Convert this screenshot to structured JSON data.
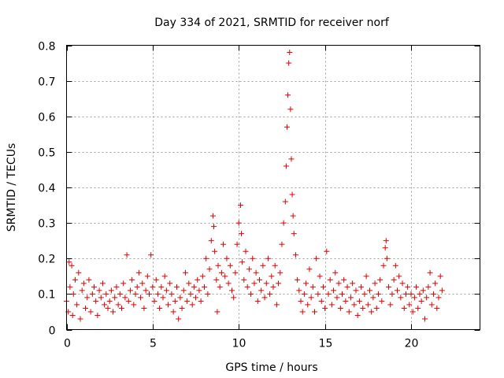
{
  "chart_data": {
    "type": "scatter",
    "title": "Day 334 of 2021, SRMTID for receiver norf",
    "xlabel": "GPS time / hours",
    "ylabel": "SRMTID / TECUs",
    "xlim": [
      0,
      24
    ],
    "ylim": [
      0,
      0.8
    ],
    "xticks": [
      0,
      5,
      10,
      15,
      20
    ],
    "xtick_labels": [
      "0",
      "5",
      "10",
      "15",
      "20"
    ],
    "yticks": [
      0,
      0.1,
      0.2,
      0.3,
      0.4,
      0.5,
      0.6,
      0.7,
      0.8
    ],
    "ytick_labels": [
      "0",
      "0.1",
      "0.2",
      "0.3",
      "0.4",
      "0.5",
      "0.6",
      "0.7",
      "0.8"
    ],
    "grid": true,
    "marker": "+",
    "color": "#e00000",
    "series": [
      {
        "name": "SRMTID",
        "points": [
          [
            0.0,
            0.08
          ],
          [
            0.1,
            0.05
          ],
          [
            0.15,
            0.19
          ],
          [
            0.2,
            0.12
          ],
          [
            0.3,
            0.18
          ],
          [
            0.35,
            0.04
          ],
          [
            0.4,
            0.1
          ],
          [
            0.5,
            0.14
          ],
          [
            0.6,
            0.07
          ],
          [
            0.7,
            0.16
          ],
          [
            0.8,
            0.03
          ],
          [
            0.9,
            0.11
          ],
          [
            1.0,
            0.13
          ],
          [
            1.1,
            0.06
          ],
          [
            1.2,
            0.09
          ],
          [
            1.3,
            0.14
          ],
          [
            1.4,
            0.05
          ],
          [
            1.5,
            0.1
          ],
          [
            1.6,
            0.12
          ],
          [
            1.7,
            0.08
          ],
          [
            1.8,
            0.04
          ],
          [
            1.9,
            0.11
          ],
          [
            2.0,
            0.09
          ],
          [
            2.1,
            0.13
          ],
          [
            2.2,
            0.07
          ],
          [
            2.3,
            0.1
          ],
          [
            2.4,
            0.06
          ],
          [
            2.5,
            0.08
          ],
          [
            2.6,
            0.11
          ],
          [
            2.7,
            0.05
          ],
          [
            2.8,
            0.09
          ],
          [
            2.9,
            0.12
          ],
          [
            3.0,
            0.07
          ],
          [
            3.1,
            0.1
          ],
          [
            3.2,
            0.06
          ],
          [
            3.3,
            0.13
          ],
          [
            3.4,
            0.09
          ],
          [
            3.5,
            0.21
          ],
          [
            3.6,
            0.08
          ],
          [
            3.7,
            0.11
          ],
          [
            3.8,
            0.14
          ],
          [
            3.9,
            0.07
          ],
          [
            4.0,
            0.1
          ],
          [
            4.1,
            0.12
          ],
          [
            4.2,
            0.16
          ],
          [
            4.3,
            0.09
          ],
          [
            4.4,
            0.13
          ],
          [
            4.5,
            0.06
          ],
          [
            4.6,
            0.11
          ],
          [
            4.7,
            0.15
          ],
          [
            4.8,
            0.1
          ],
          [
            4.9,
            0.21
          ],
          [
            5.0,
            0.12
          ],
          [
            5.1,
            0.08
          ],
          [
            5.2,
            0.14
          ],
          [
            5.3,
            0.1
          ],
          [
            5.4,
            0.06
          ],
          [
            5.5,
            0.12
          ],
          [
            5.6,
            0.09
          ],
          [
            5.7,
            0.15
          ],
          [
            5.8,
            0.11
          ],
          [
            5.9,
            0.07
          ],
          [
            6.0,
            0.13
          ],
          [
            6.1,
            0.1
          ],
          [
            6.2,
            0.05
          ],
          [
            6.3,
            0.08
          ],
          [
            6.4,
            0.12
          ],
          [
            6.5,
            0.03
          ],
          [
            6.6,
            0.09
          ],
          [
            6.7,
            0.06
          ],
          [
            6.8,
            0.11
          ],
          [
            6.9,
            0.16
          ],
          [
            7.0,
            0.08
          ],
          [
            7.1,
            0.13
          ],
          [
            7.2,
            0.1
          ],
          [
            7.3,
            0.07
          ],
          [
            7.4,
            0.12
          ],
          [
            7.5,
            0.09
          ],
          [
            7.6,
            0.14
          ],
          [
            7.7,
            0.11
          ],
          [
            7.8,
            0.08
          ],
          [
            7.9,
            0.15
          ],
          [
            8.0,
            0.12
          ],
          [
            8.1,
            0.2
          ],
          [
            8.2,
            0.1
          ],
          [
            8.3,
            0.17
          ],
          [
            8.4,
            0.25
          ],
          [
            8.5,
            0.32
          ],
          [
            8.55,
            0.29
          ],
          [
            8.6,
            0.22
          ],
          [
            8.7,
            0.14
          ],
          [
            8.75,
            0.05
          ],
          [
            8.8,
            0.18
          ],
          [
            8.9,
            0.12
          ],
          [
            9.0,
            0.16
          ],
          [
            9.1,
            0.24
          ],
          [
            9.2,
            0.15
          ],
          [
            9.3,
            0.2
          ],
          [
            9.4,
            0.13
          ],
          [
            9.5,
            0.18
          ],
          [
            9.6,
            0.11
          ],
          [
            9.7,
            0.09
          ],
          [
            9.8,
            0.16
          ],
          [
            9.9,
            0.24
          ],
          [
            10.0,
            0.3
          ],
          [
            10.1,
            0.35
          ],
          [
            10.15,
            0.27
          ],
          [
            10.2,
            0.19
          ],
          [
            10.3,
            0.14
          ],
          [
            10.4,
            0.22
          ],
          [
            10.5,
            0.12
          ],
          [
            10.6,
            0.17
          ],
          [
            10.7,
            0.1
          ],
          [
            10.8,
            0.2
          ],
          [
            10.9,
            0.13
          ],
          [
            11.0,
            0.16
          ],
          [
            11.1,
            0.08
          ],
          [
            11.2,
            0.14
          ],
          [
            11.3,
            0.11
          ],
          [
            11.4,
            0.18
          ],
          [
            11.5,
            0.09
          ],
          [
            11.6,
            0.13
          ],
          [
            11.7,
            0.2
          ],
          [
            11.8,
            0.1
          ],
          [
            11.9,
            0.15
          ],
          [
            12.0,
            0.12
          ],
          [
            12.1,
            0.18
          ],
          [
            12.2,
            0.07
          ],
          [
            12.3,
            0.13
          ],
          [
            12.4,
            0.16
          ],
          [
            12.5,
            0.24
          ],
          [
            12.6,
            0.3
          ],
          [
            12.7,
            0.36
          ],
          [
            12.75,
            0.46
          ],
          [
            12.8,
            0.57
          ],
          [
            12.85,
            0.66
          ],
          [
            12.9,
            0.75
          ],
          [
            12.95,
            0.78
          ],
          [
            13.0,
            0.62
          ],
          [
            13.05,
            0.48
          ],
          [
            13.1,
            0.38
          ],
          [
            13.15,
            0.32
          ],
          [
            13.2,
            0.27
          ],
          [
            13.3,
            0.21
          ],
          [
            13.4,
            0.14
          ],
          [
            13.5,
            0.11
          ],
          [
            13.6,
            0.08
          ],
          [
            13.7,
            0.05
          ],
          [
            13.8,
            0.1
          ],
          [
            13.9,
            0.13
          ],
          [
            14.0,
            0.07
          ],
          [
            14.1,
            0.17
          ],
          [
            14.2,
            0.09
          ],
          [
            14.3,
            0.12
          ],
          [
            14.4,
            0.05
          ],
          [
            14.5,
            0.2
          ],
          [
            14.6,
            0.1
          ],
          [
            14.7,
            0.15
          ],
          [
            14.8,
            0.08
          ],
          [
            14.9,
            0.12
          ],
          [
            15.0,
            0.06
          ],
          [
            15.1,
            0.22
          ],
          [
            15.2,
            0.1
          ],
          [
            15.3,
            0.14
          ],
          [
            15.4,
            0.07
          ],
          [
            15.5,
            0.11
          ],
          [
            15.6,
            0.16
          ],
          [
            15.7,
            0.09
          ],
          [
            15.8,
            0.13
          ],
          [
            15.9,
            0.06
          ],
          [
            16.0,
            0.1
          ],
          [
            16.1,
            0.14
          ],
          [
            16.2,
            0.08
          ],
          [
            16.3,
            0.12
          ],
          [
            16.4,
            0.05
          ],
          [
            16.5,
            0.09
          ],
          [
            16.6,
            0.13
          ],
          [
            16.7,
            0.07
          ],
          [
            16.8,
            0.11
          ],
          [
            16.9,
            0.04
          ],
          [
            17.0,
            0.08
          ],
          [
            17.1,
            0.12
          ],
          [
            17.2,
            0.06
          ],
          [
            17.3,
            0.1
          ],
          [
            17.4,
            0.15
          ],
          [
            17.5,
            0.07
          ],
          [
            17.6,
            0.11
          ],
          [
            17.7,
            0.05
          ],
          [
            17.8,
            0.09
          ],
          [
            17.9,
            0.13
          ],
          [
            18.0,
            0.06
          ],
          [
            18.1,
            0.1
          ],
          [
            18.2,
            0.14
          ],
          [
            18.3,
            0.08
          ],
          [
            18.4,
            0.18
          ],
          [
            18.5,
            0.23
          ],
          [
            18.55,
            0.25
          ],
          [
            18.6,
            0.2
          ],
          [
            18.7,
            0.12
          ],
          [
            18.8,
            0.07
          ],
          [
            18.9,
            0.1
          ],
          [
            19.0,
            0.14
          ],
          [
            19.1,
            0.18
          ],
          [
            19.2,
            0.11
          ],
          [
            19.3,
            0.15
          ],
          [
            19.4,
            0.09
          ],
          [
            19.5,
            0.13
          ],
          [
            19.6,
            0.06
          ],
          [
            19.7,
            0.1
          ],
          [
            19.8,
            0.12
          ],
          [
            19.9,
            0.07
          ],
          [
            20.0,
            0.1
          ],
          [
            20.1,
            0.05
          ],
          [
            20.2,
            0.09
          ],
          [
            20.3,
            0.12
          ],
          [
            20.4,
            0.06
          ],
          [
            20.5,
            0.1
          ],
          [
            20.6,
            0.08
          ],
          [
            20.7,
            0.11
          ],
          [
            20.8,
            0.03
          ],
          [
            20.9,
            0.09
          ],
          [
            21.0,
            0.12
          ],
          [
            21.1,
            0.16
          ],
          [
            21.2,
            0.07
          ],
          [
            21.3,
            0.1
          ],
          [
            21.4,
            0.13
          ],
          [
            21.5,
            0.06
          ],
          [
            21.6,
            0.09
          ],
          [
            21.7,
            0.15
          ],
          [
            21.8,
            0.11
          ]
        ]
      }
    ]
  }
}
